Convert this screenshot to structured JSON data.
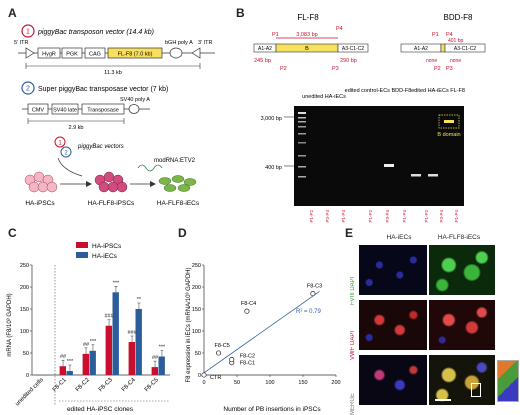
{
  "panels": {
    "A": "A",
    "B": "B",
    "C": "C",
    "D": "D",
    "E": "E"
  },
  "A": {
    "step1_num": "1",
    "step1_title": "piggyBac transposon vector (14.4 kb)",
    "itr5": "5' ITR",
    "itr3": "3' ITR",
    "hygr": "HygR",
    "pgk": "PGK",
    "cag": "CAG",
    "flf8": "FL-F8 (7.0 kb)",
    "bgh": "bGH poly A",
    "size1": "11.3 kb",
    "step2_num": "2",
    "step2_title": "Super piggyBac transposase vector (7 kb)",
    "cmv": "CMV",
    "sv40": "SV40 late",
    "transposase": "Transposase",
    "sv40polya": "SV40 poly A",
    "size2": "2.9 kb",
    "vectors": "piggyBac vectors",
    "modrna": "modRNA:ETV2",
    "cell1": "HA-iPSCs",
    "cell2": "HA-FLF8-iPSCs",
    "cell3": "HA-FLF8-iECs"
  },
  "B": {
    "fl_title": "FL-F8",
    "bdd_title": "BDD-F8",
    "a1a2": "A1-A2",
    "b": "B",
    "a3c1c2": "A3-C1-C2",
    "fl_bp": "3,083 bp",
    "p1": "P1",
    "p2": "P2",
    "p3": "P3",
    "p4": "P4",
    "bp245": "245 bp",
    "bp290": "290 bp",
    "bp401": "401 bp",
    "none1": "none",
    "none2": "none",
    "ladder_top": "3,000 bp",
    "ladder_bottom": "400 bp",
    "lane1": "unedited HA-iECs",
    "lane2": "edited control-ECs BDD-F8",
    "lane3": "edited HA-iECs FL-F8",
    "bdomain": "B domain",
    "lane_primers": [
      "P1-P2",
      "P3-P4",
      "P1-P4",
      "P1-P2",
      "P3-P4",
      "P1-P4",
      "P1-P2",
      "P3-P4",
      "P1-P4"
    ]
  },
  "C": {
    "legend_ipsc": "HA-iPSCs",
    "legend_iec": "HA-iECs",
    "ylabel": "mRNA (F8/10³ GAPDH)",
    "xlabel": "edited HA-iPSC clones",
    "chart_data": {
      "type": "bar",
      "categories": [
        "unedited cells",
        "F8-C1",
        "F8-C2",
        "F8-C3",
        "F8-C4",
        "F8-C5"
      ],
      "series": [
        {
          "name": "HA-iPSCs",
          "values": [
            0,
            20,
            48,
            112,
            75,
            18
          ],
          "color": "#c8102e"
        },
        {
          "name": "HA-iECs",
          "values": [
            0,
            9,
            55,
            188,
            150,
            42
          ],
          "color": "#2b5d9b"
        }
      ],
      "ylim": [
        0,
        250
      ],
      "yticks": [
        0,
        50,
        100,
        150,
        200,
        250
      ],
      "annotations": [
        "##",
        "***",
        "##",
        "***",
        "###",
        "***",
        "###",
        "**",
        "##",
        "***"
      ]
    }
  },
  "D": {
    "ylabel": "F8 expression in iECs (mRNA/10³ GAPDH)",
    "xlabel": "Number of PB insertions in iPSCs",
    "r2": "R² = 0.79",
    "chart_data": {
      "type": "scatter",
      "points": [
        {
          "label": "CTR",
          "x": 0,
          "y": 0
        },
        {
          "label": "F8-C1",
          "x": 42,
          "y": 28
        },
        {
          "label": "F8-C2",
          "x": 42,
          "y": 35
        },
        {
          "label": "F8-C5",
          "x": 22,
          "y": 50
        },
        {
          "label": "F8-C4",
          "x": 65,
          "y": 145
        },
        {
          "label": "F8-C3",
          "x": 165,
          "y": 185
        }
      ],
      "xlim": [
        0,
        200
      ],
      "ylim": [
        0,
        250
      ],
      "xticks": [
        0,
        50,
        100,
        150,
        200
      ],
      "yticks": [
        0,
        50,
        100,
        150,
        200,
        250
      ]
    }
  },
  "E": {
    "col1": "HA-iECs",
    "col2": "HA-FLF8-iECs",
    "row1": "FVIII DAPI",
    "row2": "VWF DAPI",
    "row3": "MERGE"
  }
}
